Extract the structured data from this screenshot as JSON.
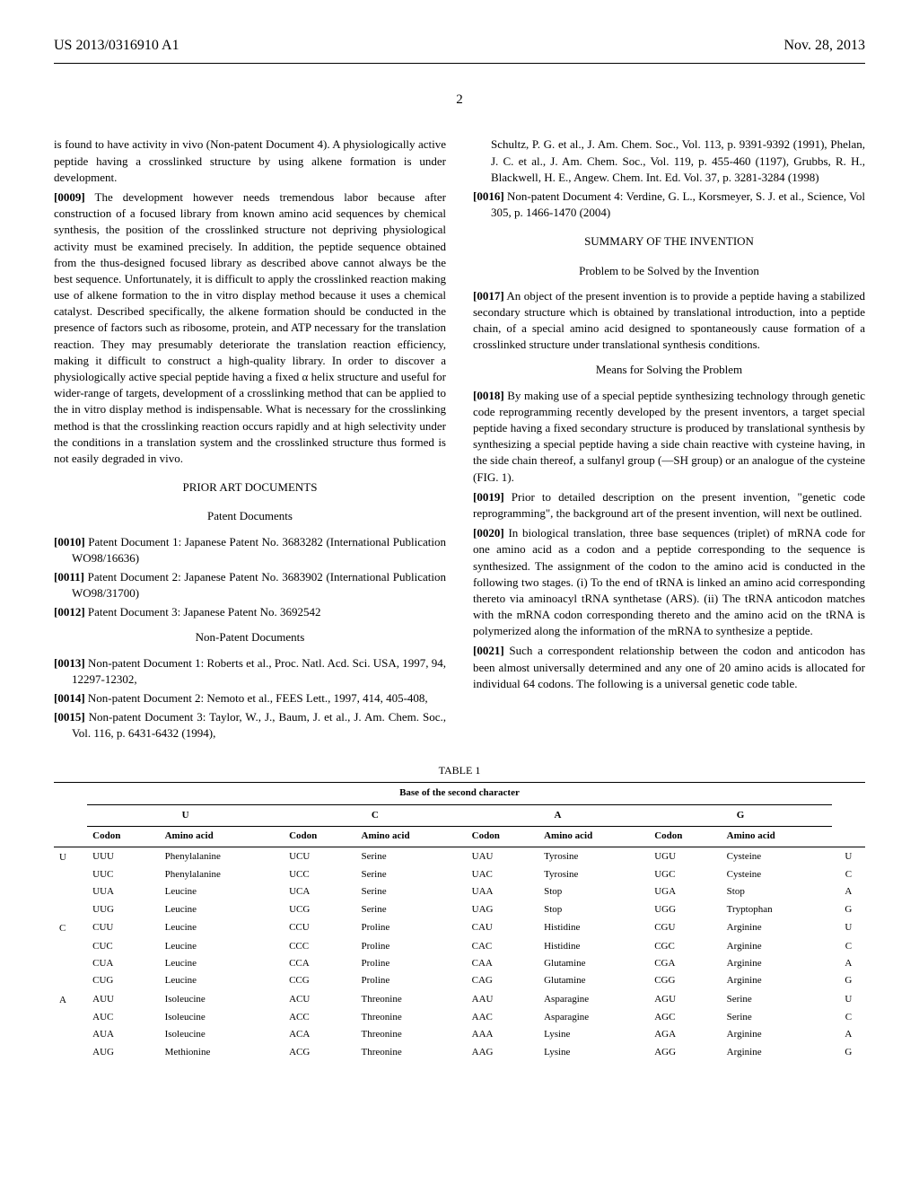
{
  "header": {
    "doc_number": "US 2013/0316910 A1",
    "date": "Nov. 28, 2013",
    "page_number": "2"
  },
  "left_column": {
    "intro_para": "is found to have activity in vivo (Non-patent Document 4). A physiologically active peptide having a crosslinked structure by using alkene formation is under development.",
    "para_0009_num": "[0009]",
    "para_0009": "The development however needs tremendous labor because after construction of a focused library from known amino acid sequences by chemical synthesis, the position of the crosslinked structure not depriving physiological activity must be examined precisely. In addition, the peptide sequence obtained from the thus-designed focused library as described above cannot always be the best sequence. Unfortunately, it is difficult to apply the crosslinked reaction making use of alkene formation to the in vitro display method because it uses a chemical catalyst. Described specifically, the alkene formation should be conducted in the presence of factors such as ribosome, protein, and ATP necessary for the translation reaction. They may presumably deteriorate the translation reaction efficiency, making it difficult to construct a high-quality library. In order to discover a physiologically active special peptide having a fixed α helix structure and useful for wider-range of targets, development of a crosslinking method that can be applied to the in vitro display method is indispensable. What is necessary for the crosslinking method is that the crosslinking reaction occurs rapidly and at high selectivity under the conditions in a translation system and the crosslinked structure thus formed is not easily degraded in vivo.",
    "prior_art_heading": "PRIOR ART DOCUMENTS",
    "patent_docs_heading": "Patent Documents",
    "ref_0010_num": "[0010]",
    "ref_0010": "Patent Document 1: Japanese Patent No. 3683282 (International Publication WO98/16636)",
    "ref_0011_num": "[0011]",
    "ref_0011": "Patent Document 2: Japanese Patent No. 3683902 (International Publication WO98/31700)",
    "ref_0012_num": "[0012]",
    "ref_0012": "Patent Document 3: Japanese Patent No. 3692542",
    "non_patent_heading": "Non-Patent Documents",
    "ref_0013_num": "[0013]",
    "ref_0013": "Non-patent Document 1: Roberts et al., Proc. Natl. Acd. Sci. USA, 1997, 94, 12297-12302,",
    "ref_0014_num": "[0014]",
    "ref_0014": "Non-patent Document 2: Nemoto et al., FEES Lett., 1997, 414, 405-408,",
    "ref_0015_num": "[0015]",
    "ref_0015": "Non-patent Document 3: Taylor, W., J., Baum, J. et al., J. Am. Chem. Soc., Vol. 116, p. 6431-6432 (1994),"
  },
  "right_column": {
    "ref_cont": "Schultz, P. G. et al., J. Am. Chem. Soc., Vol. 113, p. 9391-9392 (1991), Phelan, J. C. et al., J. Am. Chem. Soc., Vol. 119, p. 455-460 (1197), Grubbs, R. H., Blackwell, H. E., Angew. Chem. Int. Ed. Vol. 37, p. 3281-3284 (1998)",
    "ref_0016_num": "[0016]",
    "ref_0016": "Non-patent Document 4: Verdine, G. L., Korsmeyer, S. J. et al., Science, Vol 305, p. 1466-1470 (2004)",
    "summary_heading": "SUMMARY OF THE INVENTION",
    "problem_heading": "Problem to be Solved by the Invention",
    "para_0017_num": "[0017]",
    "para_0017": "An object of the present invention is to provide a peptide having a stabilized secondary structure which is obtained by translational introduction, into a peptide chain, of a special amino acid designed to spontaneously cause formation of a crosslinked structure under translational synthesis conditions.",
    "means_heading": "Means for Solving the Problem",
    "para_0018_num": "[0018]",
    "para_0018": "By making use of a special peptide synthesizing technology through genetic code reprogramming recently developed by the present inventors, a target special peptide having a fixed secondary structure is produced by translational synthesis by synthesizing a special peptide having a side chain reactive with cysteine having, in the side chain thereof, a sulfanyl group (—SH group) or an analogue of the cysteine (FIG. 1).",
    "para_0019_num": "[0019]",
    "para_0019": "Prior to detailed description on the present invention, \"genetic code reprogramming\", the background art of the present invention, will next be outlined.",
    "para_0020_num": "[0020]",
    "para_0020": "In biological translation, three base sequences (triplet) of mRNA code for one amino acid as a codon and a peptide corresponding to the sequence is synthesized. The assignment of the codon to the amino acid is conducted in the following two stages. (i) To the end of tRNA is linked an amino acid corresponding thereto via aminoacyl tRNA synthetase (ARS). (ii) The tRNA anticodon matches with the mRNA codon corresponding thereto and the amino acid on the tRNA is polymerized along the information of the mRNA to synthesize a peptide.",
    "para_0021_num": "[0021]",
    "para_0021": "Such a correspondent relationship between the codon and anticodon has been almost universally determined and any one of 20 amino acids is allocated for individual 64 codons. The following is a universal genetic code table."
  },
  "table": {
    "label": "TABLE 1",
    "super_header": "Base of the second character",
    "col_groups": [
      "U",
      "C",
      "A",
      "G"
    ],
    "sub_headers": [
      "Codon",
      "Amino acid"
    ],
    "first_chars": [
      "U",
      "C",
      "A"
    ],
    "rows": [
      {
        "first": "U",
        "cells": [
          [
            "UUU",
            "Phenylalanine"
          ],
          [
            "UCU",
            "Serine"
          ],
          [
            "UAU",
            "Tyrosine"
          ],
          [
            "UGU",
            "Cysteine"
          ]
        ],
        "third": "U"
      },
      {
        "first": "",
        "cells": [
          [
            "UUC",
            "Phenylalanine"
          ],
          [
            "UCC",
            "Serine"
          ],
          [
            "UAC",
            "Tyrosine"
          ],
          [
            "UGC",
            "Cysteine"
          ]
        ],
        "third": "C"
      },
      {
        "first": "",
        "cells": [
          [
            "UUA",
            "Leucine"
          ],
          [
            "UCA",
            "Serine"
          ],
          [
            "UAA",
            "Stop"
          ],
          [
            "UGA",
            "Stop"
          ]
        ],
        "third": "A"
      },
      {
        "first": "",
        "cells": [
          [
            "UUG",
            "Leucine"
          ],
          [
            "UCG",
            "Serine"
          ],
          [
            "UAG",
            "Stop"
          ],
          [
            "UGG",
            "Tryptophan"
          ]
        ],
        "third": "G"
      },
      {
        "first": "C",
        "cells": [
          [
            "CUU",
            "Leucine"
          ],
          [
            "CCU",
            "Proline"
          ],
          [
            "CAU",
            "Histidine"
          ],
          [
            "CGU",
            "Arginine"
          ]
        ],
        "third": "U"
      },
      {
        "first": "",
        "cells": [
          [
            "CUC",
            "Leucine"
          ],
          [
            "CCC",
            "Proline"
          ],
          [
            "CAC",
            "Histidine"
          ],
          [
            "CGC",
            "Arginine"
          ]
        ],
        "third": "C"
      },
      {
        "first": "",
        "cells": [
          [
            "CUA",
            "Leucine"
          ],
          [
            "CCA",
            "Proline"
          ],
          [
            "CAA",
            "Glutamine"
          ],
          [
            "CGA",
            "Arginine"
          ]
        ],
        "third": "A"
      },
      {
        "first": "",
        "cells": [
          [
            "CUG",
            "Leucine"
          ],
          [
            "CCG",
            "Proline"
          ],
          [
            "CAG",
            "Glutamine"
          ],
          [
            "CGG",
            "Arginine"
          ]
        ],
        "third": "G"
      },
      {
        "first": "A",
        "cells": [
          [
            "AUU",
            "Isoleucine"
          ],
          [
            "ACU",
            "Threonine"
          ],
          [
            "AAU",
            "Asparagine"
          ],
          [
            "AGU",
            "Serine"
          ]
        ],
        "third": "U"
      },
      {
        "first": "",
        "cells": [
          [
            "AUC",
            "Isoleucine"
          ],
          [
            "ACC",
            "Threonine"
          ],
          [
            "AAC",
            "Asparagine"
          ],
          [
            "AGC",
            "Serine"
          ]
        ],
        "third": "C"
      },
      {
        "first": "",
        "cells": [
          [
            "AUA",
            "Isoleucine"
          ],
          [
            "ACA",
            "Threonine"
          ],
          [
            "AAA",
            "Lysine"
          ],
          [
            "AGA",
            "Arginine"
          ]
        ],
        "third": "A"
      },
      {
        "first": "",
        "cells": [
          [
            "AUG",
            "Methionine"
          ],
          [
            "ACG",
            "Threonine"
          ],
          [
            "AAG",
            "Lysine"
          ],
          [
            "AGG",
            "Arginine"
          ]
        ],
        "third": "G"
      }
    ]
  }
}
